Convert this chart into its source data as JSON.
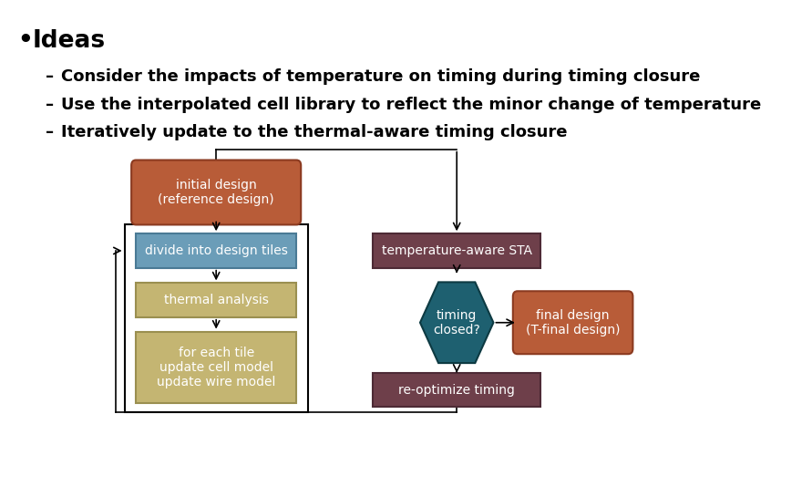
{
  "background_color": "#ffffff",
  "title_bullet": "Ideas",
  "bullet_points": [
    "Consider the impacts of temperature on timing during timing closure",
    "Use the interpolated cell library to reflect the minor change of temperature",
    "Iteratively update to the thermal-aware timing closure"
  ],
  "colors": {
    "orange_red": "#b85c38",
    "orange_red_edge": "#8b3a20",
    "steel_blue": "#6b9db8",
    "steel_blue_edge": "#4a7a95",
    "olive": "#c4b572",
    "olive_edge": "#9a8f50",
    "dark_purple": "#6e3f4a",
    "dark_purple_edge": "#4d2a35",
    "teal": "#1e6070",
    "teal_edge": "#0d3a42",
    "white": "#ffffff",
    "black": "#000000"
  },
  "layout": {
    "fig_width": 8.91,
    "fig_height": 5.45,
    "dpi": 100
  }
}
